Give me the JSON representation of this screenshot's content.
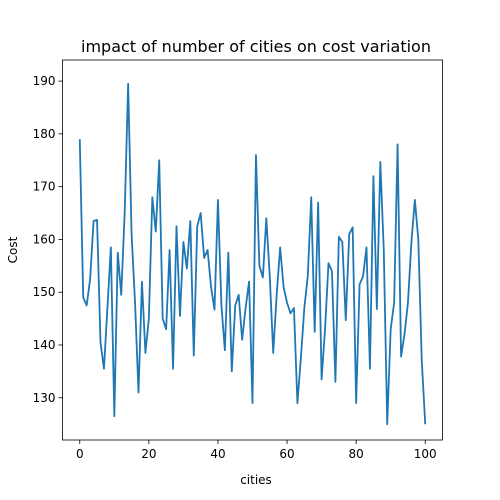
{
  "chart_data": {
    "type": "line",
    "title": "impact of number of cities on cost variation",
    "xlabel": "cities",
    "ylabel": "Cost",
    "xlim": [
      -5,
      105
    ],
    "ylim": [
      122,
      194
    ],
    "xticks": [
      0,
      20,
      40,
      60,
      80,
      100
    ],
    "yticks": [
      130,
      140,
      150,
      160,
      170,
      180,
      190
    ],
    "grid": false,
    "color": "#1f77b4",
    "series": [
      {
        "x": [
          0,
          1,
          2,
          3,
          4,
          5,
          6,
          7,
          8,
          9,
          10,
          11,
          12,
          13,
          14,
          15,
          16,
          17,
          18,
          19,
          20,
          21,
          22,
          23,
          24,
          25,
          26,
          27,
          28,
          29,
          30,
          31,
          32,
          33,
          34,
          35,
          36,
          37,
          38,
          39,
          40,
          41,
          42,
          43,
          44,
          45,
          46,
          47,
          48,
          49,
          50,
          51,
          52,
          53,
          54,
          55,
          56,
          57,
          58,
          59,
          60,
          61,
          62,
          63,
          64,
          65,
          66,
          67,
          68,
          69,
          70,
          71,
          72,
          73,
          74,
          75,
          76,
          77,
          78,
          79,
          80,
          81,
          82,
          83,
          84,
          85,
          86,
          87,
          88,
          89,
          90,
          91,
          92,
          93,
          94,
          95,
          96,
          97,
          98,
          99,
          100
        ],
        "y": [
          179,
          149,
          147.5,
          152.5,
          163.5,
          163.7,
          140.5,
          135.5,
          147,
          158.5,
          126.5,
          157.5,
          149.5,
          165,
          189.5,
          161,
          148,
          131,
          152,
          138.5,
          145,
          168,
          161.5,
          175,
          145,
          143,
          158,
          135.5,
          162.5,
          145.5,
          159.5,
          154.5,
          163.5,
          138,
          162.5,
          165,
          156.5,
          158,
          151,
          146.7,
          167.5,
          147.5,
          139,
          157.5,
          135,
          147.5,
          149.5,
          141,
          147,
          152,
          129,
          176,
          155,
          152.8,
          164,
          153,
          138.5,
          149.5,
          158.5,
          151,
          148,
          146,
          147,
          129,
          137.5,
          147,
          153,
          168,
          142.5,
          167,
          133.5,
          143,
          155.5,
          154,
          133,
          160.5,
          159.5,
          144.7,
          161,
          162.3,
          129,
          151.5,
          153,
          158.5,
          135.5,
          172,
          146.8,
          174.7,
          158,
          125,
          143,
          148,
          178,
          137.8,
          142,
          148,
          159.5,
          167.5,
          160,
          137,
          125
        ]
      }
    ]
  }
}
